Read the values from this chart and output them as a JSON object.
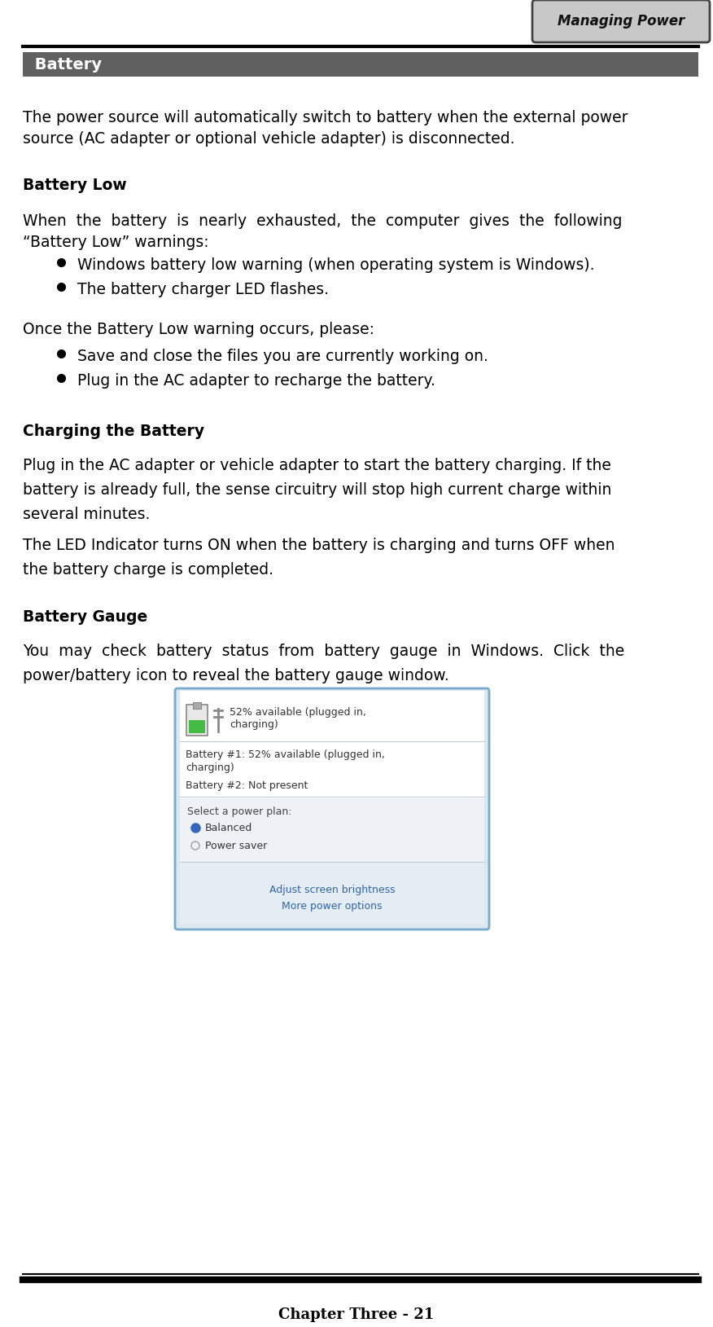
{
  "page_width": 8.76,
  "page_height": 16.29,
  "bg_color": "#ffffff",
  "header_tab_text": "Managing Power",
  "header_tab_bg": "#c8c8c8",
  "header_line_color": "#000000",
  "battery_section_title": " Battery",
  "battery_section_bg": "#606060",
  "battery_section_text_color": "#ffffff",
  "body_text_color": "#000000",
  "body_font_size": 13.5,
  "para1_line1": "The power source will automatically switch to battery when the external power",
  "para1_line2": "source (AC adapter or optional vehicle adapter) is disconnected.",
  "batt_low_title": "Battery Low",
  "batt_low_line1": "When  the  battery  is  nearly  exhausted,  the  computer  gives  the  following",
  "batt_low_line2": "“Battery Low” warnings:",
  "batt_low_bullets": [
    "Windows battery low warning (when operating system is Windows).",
    "The battery charger LED flashes."
  ],
  "once_para": "Once the Battery Low warning occurs, please:",
  "once_bullets": [
    "Save and close the files you are currently working on.",
    "Plug in the AC adapter to recharge the battery."
  ],
  "charging_title": "Charging the Battery",
  "charging_p1_l1": "Plug in the AC adapter or vehicle adapter to start the battery charging. If the",
  "charging_p1_l2": "battery is already full, the sense circuitry will stop high current charge within",
  "charging_p1_l3": "several minutes.",
  "charging_p2_l1": "The LED Indicator turns ON when the battery is charging and turns OFF when",
  "charging_p2_l2": "the battery charge is completed.",
  "gauge_title": "Battery Gauge",
  "gauge_line1": "You  may  check  battery  status  from  battery  gauge  in  Windows.  Click  the",
  "gauge_line2": "power/battery icon to reveal the battery gauge window.",
  "footer_text": "Chapter Three - 21",
  "window_border_color": "#7aaacc",
  "window_bg": "#dce8f0",
  "window_inner_bg": "#ffffff",
  "window_header_text1": "52% available (plugged in,",
  "window_header_text2": "charging)",
  "window_batt1": "Battery #1: 52% available (plugged in,",
  "window_batt1b": "charging)",
  "window_batt2": "Battery #2: Not present",
  "window_plan": "Select a power plan:",
  "window_balanced": "Balanced",
  "window_power_saver": "Power saver",
  "window_footer1": "Adjust screen brightness",
  "window_footer2": "More power options",
  "window_footer_bg": "#e4ecf4"
}
